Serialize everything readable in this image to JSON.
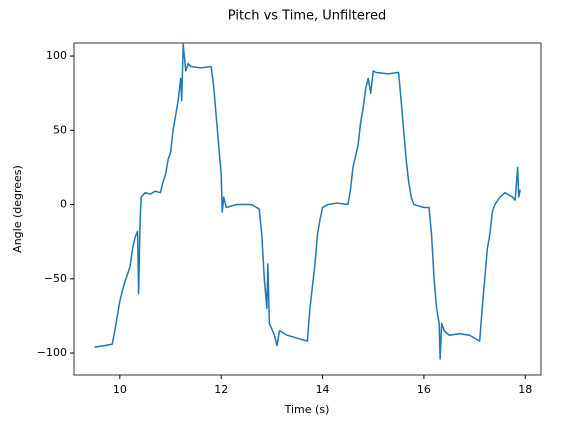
{
  "chart_data": {
    "type": "line",
    "title": "Pitch vs Time, Unfiltered",
    "x_label": "Time (s)",
    "y_label": "Angle (degrees)",
    "color": "#1f77b4",
    "x": [
      9.5,
      9.7,
      9.85,
      9.9,
      9.95,
      10.0,
      10.05,
      10.1,
      10.2,
      10.25,
      10.3,
      10.35,
      10.37,
      10.4,
      10.42,
      10.5,
      10.6,
      10.7,
      10.8,
      10.85,
      10.9,
      10.95,
      11.0,
      11.05,
      11.1,
      11.15,
      11.2,
      11.22,
      11.25,
      11.3,
      11.35,
      11.4,
      11.6,
      11.8,
      11.85,
      11.9,
      11.95,
      12.0,
      12.02,
      12.05,
      12.1,
      12.3,
      12.6,
      12.75,
      12.8,
      12.85,
      12.9,
      12.92,
      12.95,
      13.05,
      13.1,
      13.15,
      13.3,
      13.5,
      13.7,
      13.75,
      13.85,
      13.9,
      13.95,
      14.0,
      14.1,
      14.3,
      14.5,
      14.55,
      14.6,
      14.7,
      14.75,
      14.8,
      14.85,
      14.9,
      14.95,
      15.0,
      15.05,
      15.3,
      15.5,
      15.55,
      15.6,
      15.65,
      15.7,
      15.75,
      15.8,
      16.0,
      16.1,
      16.15,
      16.2,
      16.25,
      16.3,
      16.32,
      16.35,
      16.4,
      16.5,
      16.7,
      16.9,
      17.1,
      17.15,
      17.2,
      17.25,
      17.3,
      17.35,
      17.4,
      17.5,
      17.6,
      17.75,
      17.8,
      17.82,
      17.85,
      17.87,
      17.9
    ],
    "values": [
      -96,
      -95,
      -94,
      -85,
      -75,
      -65,
      -58,
      -52,
      -42,
      -30,
      -22,
      -18,
      -60,
      -10,
      5,
      8,
      7,
      9,
      8,
      15,
      20,
      30,
      35,
      50,
      60,
      70,
      85,
      70,
      108,
      90,
      95,
      93,
      92,
      93,
      80,
      60,
      40,
      20,
      -5,
      5,
      -2,
      0,
      0,
      -3,
      -20,
      -50,
      -70,
      -40,
      -80,
      -88,
      -95,
      -85,
      -88,
      -90,
      -92,
      -70,
      -40,
      -20,
      -10,
      -2,
      0,
      1,
      0,
      10,
      25,
      40,
      55,
      65,
      78,
      85,
      75,
      90,
      89,
      88,
      89,
      70,
      50,
      30,
      15,
      5,
      0,
      -2,
      -2,
      -20,
      -50,
      -70,
      -80,
      -104,
      -80,
      -85,
      -88,
      -87,
      -88,
      -92,
      -70,
      -50,
      -30,
      -20,
      -5,
      0,
      5,
      8,
      5,
      3,
      12,
      25,
      5,
      10
    ],
    "xlim": [
      9.095,
      18.31
    ],
    "xticks": [
      10,
      12,
      14,
      16,
      18
    ],
    "ylim": [
      -114.8,
      108.8
    ],
    "yticks": [
      {
        "value": -100,
        "label": "−100"
      },
      {
        "value": -50,
        "label": "−50"
      },
      0,
      50,
      100
    ]
  }
}
